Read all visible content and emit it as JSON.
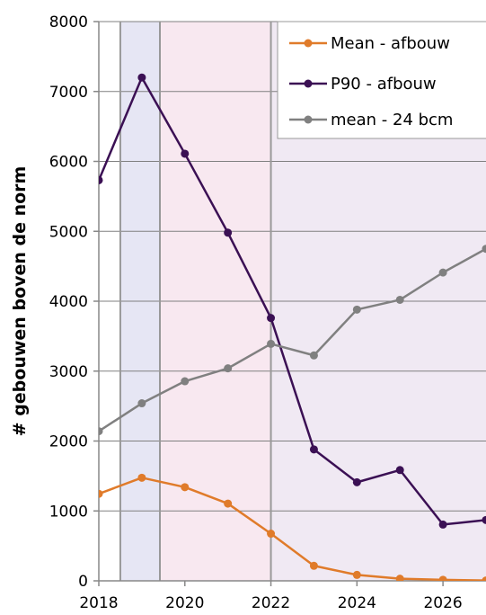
{
  "chart_data": {
    "type": "line",
    "ylabel": "# gebouwen boven de norm",
    "xlabel": "",
    "xlim": [
      2018,
      2027
    ],
    "ylim": [
      0,
      8000
    ],
    "x_ticks": [
      2018,
      2020,
      2022,
      2024,
      2026
    ],
    "y_ticks": [
      0,
      1000,
      2000,
      3000,
      4000,
      5000,
      6000,
      7000,
      8000
    ],
    "x_tick_labels": [
      "2018",
      "2020",
      "2022",
      "2024",
      "2026"
    ],
    "y_tick_labels": [
      "0",
      "1000",
      "2000",
      "3000",
      "4000",
      "5000",
      "6000",
      "7000",
      "8000"
    ],
    "grid": true,
    "legend_position": "top-right",
    "shaded_regions": [
      {
        "x_start": 2018.5,
        "x_end": 2019.42,
        "color": "#e6e6f4"
      },
      {
        "x_start": 2019.42,
        "x_end": 2022,
        "color": "#f8e8f0"
      },
      {
        "x_start": 2022,
        "x_end": 2027,
        "color": "#f0e9f3"
      }
    ],
    "vertical_lines": [
      2018.5,
      2019.42,
      2022
    ],
    "series": [
      {
        "name": "Mean - afbouw",
        "color": "#e07b2a",
        "x": [
          2018,
          2019,
          2020,
          2021,
          2022,
          2023,
          2024,
          2025,
          2026,
          2027
        ],
        "y": [
          1245,
          1475,
          1340,
          1105,
          675,
          215,
          85,
          30,
          15,
          5
        ]
      },
      {
        "name": "P90 - afbouw",
        "color": "#3b1054",
        "x": [
          2018,
          2019,
          2020,
          2021,
          2022,
          2023,
          2024,
          2025,
          2026,
          2027
        ],
        "y": [
          5730,
          7200,
          6110,
          4980,
          3760,
          1880,
          1410,
          1585,
          805,
          870
        ]
      },
      {
        "name": "mean - 24 bcm",
        "color": "#808080",
        "x": [
          2018,
          2019,
          2020,
          2021,
          2022,
          2023,
          2024,
          2025,
          2026,
          2027
        ],
        "y": [
          2140,
          2540,
          2855,
          3040,
          3390,
          3225,
          3880,
          4020,
          4410,
          4750
        ]
      }
    ]
  }
}
